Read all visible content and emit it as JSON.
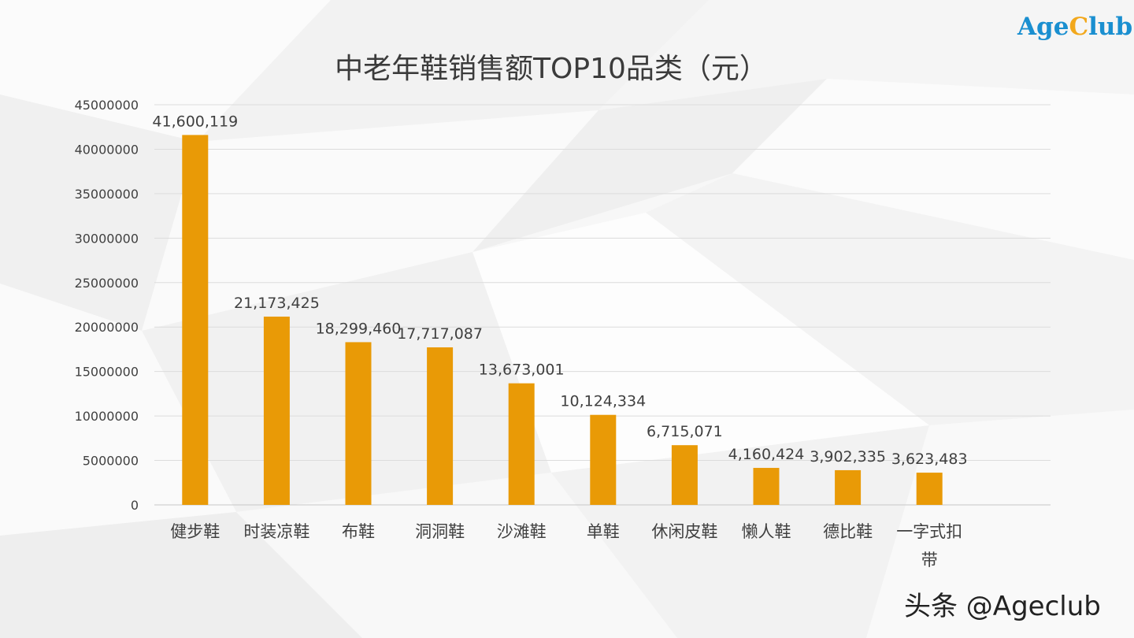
{
  "logo": {
    "part1": "Age",
    "part2": "C",
    "part3": "lub",
    "colors": {
      "blue": "#1a8fd0",
      "orange": "#f2a81c"
    }
  },
  "watermark": "头条 @Ageclub",
  "chart_data": {
    "type": "bar",
    "title": "中老年鞋销售额TOP10品类（元）",
    "xlabel": "",
    "ylabel": "",
    "ylim": [
      0,
      45000000
    ],
    "yticks": [
      0,
      5000000,
      10000000,
      15000000,
      20000000,
      25000000,
      30000000,
      35000000,
      40000000,
      45000000
    ],
    "grid": true,
    "bar_color": "#e99a06",
    "categories": [
      "健步鞋",
      "时装凉鞋",
      "布鞋",
      "洞洞鞋",
      "沙滩鞋",
      "单鞋",
      "休闲皮鞋",
      "懒人鞋",
      "德比鞋",
      "一字式扣带"
    ],
    "values": [
      41600119,
      21173425,
      18299460,
      17717087,
      13673001,
      10124334,
      6715071,
      4160424,
      3902335,
      3623483
    ],
    "value_labels": [
      "41,600,119",
      "21,173,425",
      "18,299,460",
      "17,717,087",
      "13,673,001",
      "10,124,334",
      "6,715,071",
      "4,160,424",
      "3,902,335",
      "3,623,483"
    ]
  }
}
